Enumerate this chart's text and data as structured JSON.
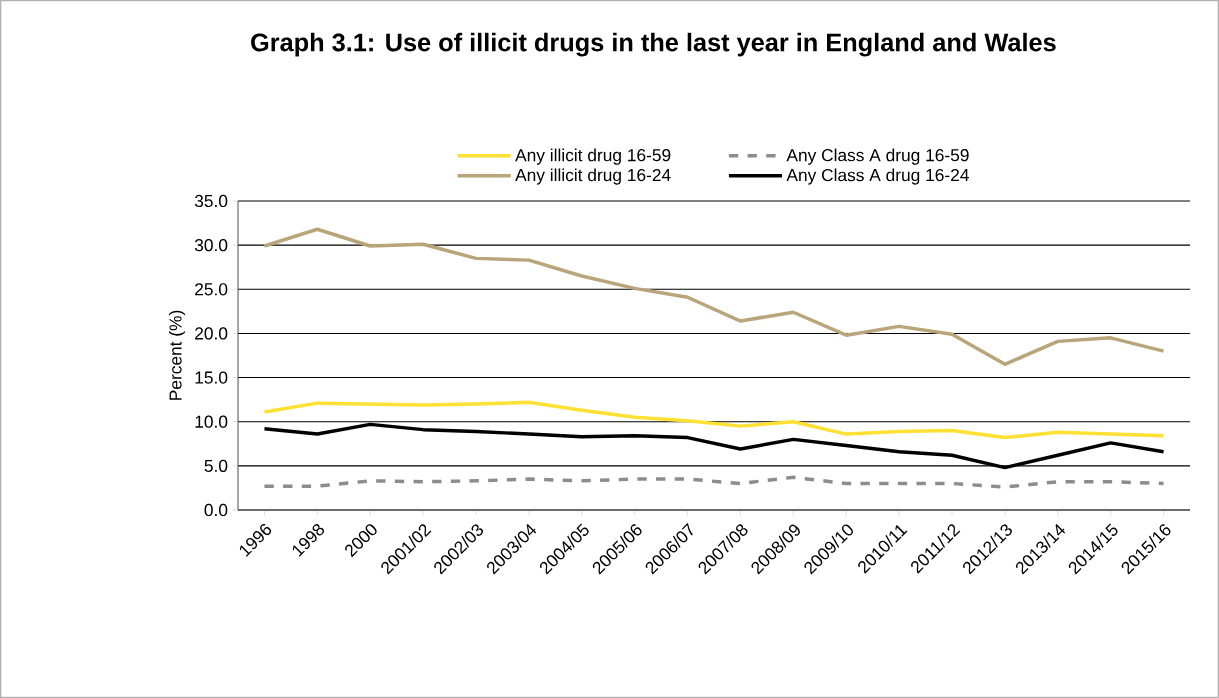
{
  "chart_data": {
    "type": "line",
    "title": "Graph 3.1: Use of illicit drugs in the last year in England and Wales",
    "ylabel": "Percent (%)",
    "categories": [
      "1996",
      "1998",
      "2000",
      "2001/02",
      "2002/03",
      "2003/04",
      "2004/05",
      "2005/06",
      "2006/07",
      "2007/08",
      "2008/09",
      "2009/10",
      "2010/11",
      "2011/12",
      "2012/13",
      "2013/14",
      "2014/15",
      "2015/16"
    ],
    "series": [
      {
        "name": "Any illicit drug 16-59",
        "color": "#ffe033",
        "line_style": "solid",
        "values": [
          11.1,
          12.1,
          12.0,
          11.9,
          12.0,
          12.2,
          11.3,
          10.5,
          10.1,
          9.5,
          10.0,
          8.6,
          8.9,
          9.0,
          8.2,
          8.8,
          8.6,
          8.4
        ]
      },
      {
        "name": "Any Class A drug 16-59",
        "color": "#8c8c8c",
        "line_style": "dashed",
        "values": [
          2.7,
          2.7,
          3.3,
          3.2,
          3.3,
          3.5,
          3.3,
          3.5,
          3.5,
          3.0,
          3.7,
          3.0,
          3.0,
          3.0,
          2.6,
          3.2,
          3.2,
          3.0
        ]
      },
      {
        "name": "Any illicit drug 16-24",
        "color": "#b8a57a",
        "line_style": "solid",
        "values": [
          29.9,
          31.8,
          29.9,
          30.1,
          28.5,
          28.3,
          26.5,
          25.1,
          24.1,
          21.4,
          22.4,
          19.8,
          20.8,
          19.9,
          16.5,
          19.1,
          19.5,
          18.0
        ]
      },
      {
        "name": "Any Class A drug 16-24",
        "color": "#000000",
        "line_style": "solid",
        "values": [
          9.2,
          8.6,
          9.7,
          9.1,
          8.9,
          8.6,
          8.3,
          8.4,
          8.2,
          6.9,
          8.0,
          7.3,
          6.6,
          6.2,
          4.8,
          6.2,
          7.6,
          6.6
        ]
      }
    ],
    "ylim": [
      0,
      35
    ],
    "yticks": [
      {
        "value": 0,
        "label": "0.0"
      },
      {
        "value": 5,
        "label": "5.0"
      },
      {
        "value": 10,
        "label": "10.0"
      },
      {
        "value": 15,
        "label": "15.0"
      },
      {
        "value": 20,
        "label": "20.0"
      },
      {
        "value": 25,
        "label": "25.0"
      },
      {
        "value": 30,
        "label": "30.0"
      },
      {
        "value": 35,
        "label": "35.0"
      }
    ],
    "grid": "y",
    "legend": "top"
  }
}
